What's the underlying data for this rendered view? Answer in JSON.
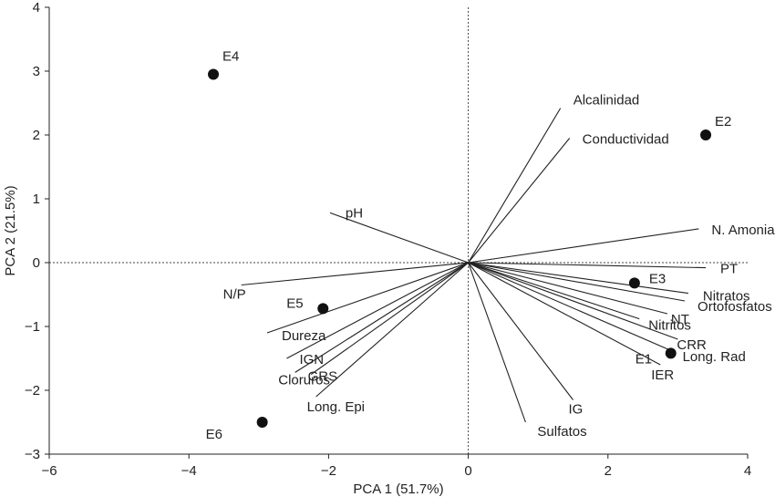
{
  "chart_data": {
    "type": "scatter",
    "subtype": "pca-biplot",
    "xlabel": "PCA 1 (51.7%)",
    "ylabel": "PCA 2 (21.5%)",
    "xlim": [
      -6,
      4
    ],
    "ylim": [
      -3,
      4
    ],
    "xticks": [
      -6,
      -4,
      -2,
      0,
      2,
      4
    ],
    "yticks": [
      -3,
      -2,
      -1,
      0,
      1,
      2,
      3,
      4
    ],
    "xtick_labels": [
      "−6",
      "−4",
      "−2",
      "0",
      "2",
      "4"
    ],
    "ytick_labels": [
      "−3",
      "−2",
      "−1",
      "0",
      "1",
      "2",
      "3",
      "4"
    ],
    "grid": false,
    "zero_lines": "dashed",
    "points": [
      {
        "label": "E1",
        "x": 2.9,
        "y": -1.42
      },
      {
        "label": "E2",
        "x": 3.4,
        "y": 2.0
      },
      {
        "label": "E3",
        "x": 2.38,
        "y": -0.32
      },
      {
        "label": "E4",
        "x": -3.65,
        "y": 2.95
      },
      {
        "label": "E5",
        "x": -2.08,
        "y": -0.72
      },
      {
        "label": "E6",
        "x": -2.95,
        "y": -2.5
      }
    ],
    "vectors": [
      {
        "label": "Alcalinidad",
        "x": 1.32,
        "y": 2.42
      },
      {
        "label": "Conductividad",
        "x": 1.45,
        "y": 1.95
      },
      {
        "label": "N. Amoniacal",
        "x": 3.3,
        "y": 0.53
      },
      {
        "label": "PT",
        "x": 3.4,
        "y": -0.08
      },
      {
        "label": "Nitratos",
        "x": 3.15,
        "y": -0.48
      },
      {
        "label": "Ortofosfatos",
        "x": 3.1,
        "y": -0.6
      },
      {
        "label": "NT",
        "x": 2.85,
        "y": -0.8
      },
      {
        "label": "Nitritos",
        "x": 2.45,
        "y": -0.88
      },
      {
        "label": "CRR",
        "x": 3.0,
        "y": -1.2
      },
      {
        "label": "Long. Rad",
        "x": 2.95,
        "y": -1.4
      },
      {
        "label": "IER",
        "x": 2.75,
        "y": -1.6
      },
      {
        "label": "IG",
        "x": 1.5,
        "y": -2.15
      },
      {
        "label": "Sulfatos",
        "x": 0.82,
        "y": -2.5
      },
      {
        "label": "pH",
        "x": -1.98,
        "y": 0.78
      },
      {
        "label": "N/P",
        "x": -3.25,
        "y": -0.35
      },
      {
        "label": "Dureza",
        "x": -2.88,
        "y": -1.1
      },
      {
        "label": "IGN",
        "x": -2.6,
        "y": -1.5
      },
      {
        "label": "GRS",
        "x": -2.48,
        "y": -1.72
      },
      {
        "label": "Cloruros",
        "x": -2.25,
        "y": -1.75
      },
      {
        "label": "Long. Epi",
        "x": -2.18,
        "y": -2.1
      }
    ]
  }
}
